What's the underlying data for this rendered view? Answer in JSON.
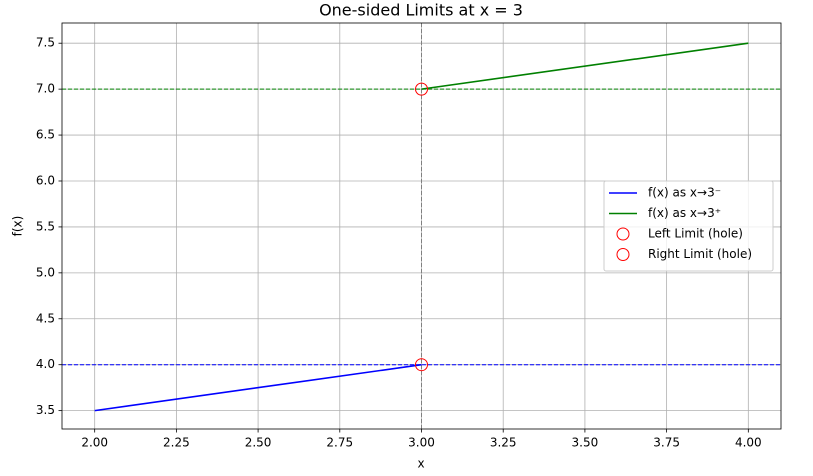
{
  "chart_data": {
    "type": "line",
    "title": "One-sided Limits at x = 3",
    "xlabel": "x",
    "ylabel": "f(x)",
    "series": [
      {
        "name": "f(x) as x→3⁻",
        "color": "#0000ff",
        "x": [
          2,
          3
        ],
        "values": [
          3.5,
          4
        ]
      },
      {
        "name": "f(x) as x→3⁺",
        "color": "#008000",
        "x": [
          3,
          4
        ],
        "values": [
          7,
          7.5
        ]
      },
      {
        "name": "Left Limit (hole)",
        "color": "#ff0000",
        "marker": "hollow-circle",
        "x": [
          3
        ],
        "values": [
          4
        ]
      },
      {
        "name": "Right Limit (hole)",
        "color": "#ff0000",
        "marker": "hollow-circle",
        "x": [
          3
        ],
        "values": [
          7
        ]
      }
    ],
    "hlines": [
      {
        "value": 4,
        "color": "#0000ff"
      },
      {
        "value": 7,
        "color": "#008000"
      }
    ],
    "vlines": [
      {
        "value": 3,
        "color": "#808080"
      }
    ],
    "xlim": [
      1.9,
      4.1
    ],
    "xticks": [
      {
        "value": 2,
        "label": "2.00"
      },
      2.25,
      {
        "value": 2.5,
        "label": "2.50"
      },
      2.75,
      {
        "value": 3,
        "label": "3.00"
      },
      3.25,
      {
        "value": 3.5,
        "label": "3.50"
      },
      3.75,
      {
        "value": 4,
        "label": "4.00"
      }
    ],
    "ylim": [
      3.3,
      7.72
    ],
    "yticks": [
      3.5,
      {
        "value": 4,
        "label": "4.0"
      },
      4.5,
      {
        "value": 5,
        "label": "5.0"
      },
      5.5,
      {
        "value": 6,
        "label": "6.0"
      },
      6.5,
      {
        "value": 7,
        "label": "7.0"
      },
      7.5
    ],
    "grid": true,
    "legend": "center right"
  }
}
